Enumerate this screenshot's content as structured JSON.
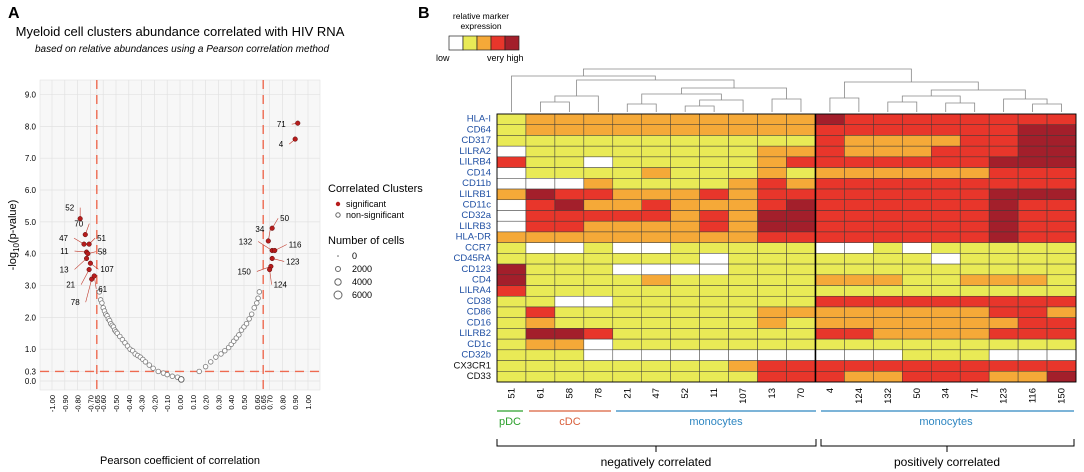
{
  "panel_a": {
    "letter": "A",
    "title": "Myeloid cell clusters abundance correlated with HIV RNA",
    "subtitle": "based on relative abundances using a Pearson correlation method",
    "xlabel": "Pearson coefficient of correlation",
    "ylabel": "-log10(p-value)",
    "ylabel_base": "-log",
    "ylabel_sub": "10",
    "ylabel_rest": "(p-value)",
    "legend": {
      "color_title": "Correlated Clusters",
      "significant": "significant",
      "non_significant": "non-significant",
      "size_title": "Number of cells",
      "sizes": [
        "0",
        "2000",
        "4000",
        "6000"
      ]
    },
    "colors": {
      "significant": "#b71c1c",
      "threshold": "#ee6a50",
      "nonsig": "#9a9a9a"
    }
  },
  "panel_b": {
    "letter": "B",
    "scale_title_1": "relative marker",
    "scale_title_2": "expression",
    "scale_low": "low",
    "scale_high": "very high",
    "scale_colors": [
      "#ffffff",
      "#e9ea56",
      "#f5a938",
      "#e8362b",
      "#a31f2b"
    ],
    "group_labels": [
      "pDC",
      "cDC",
      "monocytes",
      "monocytes"
    ],
    "group_colors": [
      "#2ca02c",
      "#d9603c",
      "#2e86c1",
      "#2e86c1"
    ],
    "bottom_labels": [
      "negatively correlated",
      "positively correlated"
    ]
  },
  "chart_data": [
    {
      "type": "scatter",
      "title": "Myeloid cell clusters abundance correlated with HIV RNA",
      "xlabel": "Pearson coefficient of correlation",
      "ylabel": "-log10(p-value)",
      "xlim": [
        -1.0,
        1.0
      ],
      "ylim": [
        0,
        9.3
      ],
      "xticks": [
        "-1.00",
        "-0.90",
        "-0.80",
        "-0.70",
        "-0.65",
        "-0.60",
        "-0.50",
        "-0.40",
        "-0.30",
        "-0.20",
        "-0.10",
        "0.00",
        "0.10",
        "0.20",
        "0.30",
        "0.40",
        "0.50",
        "0.60",
        "0.65",
        "0.70",
        "0.80",
        "0.90",
        "1.00"
      ],
      "yticks": [
        "0.0",
        "0.3",
        "1.0",
        "2.0",
        "3.0",
        "4.0",
        "5.0",
        "6.0",
        "7.0",
        "8.0",
        "9.0"
      ],
      "thresholds": {
        "x": [
          -0.65,
          0.65
        ],
        "y": 0.3
      },
      "significant": [
        {
          "label": "71",
          "x": 0.92,
          "y": 8.1
        },
        {
          "label": "4",
          "x": 0.9,
          "y": 7.6
        },
        {
          "label": "52",
          "x": -0.78,
          "y": 5.1
        },
        {
          "label": "70",
          "x": -0.74,
          "y": 4.6
        },
        {
          "label": "47",
          "x": -0.75,
          "y": 4.3
        },
        {
          "label": "51",
          "x": -0.71,
          "y": 4.3
        },
        {
          "label": "11",
          "x": -0.73,
          "y": 4.05
        },
        {
          "label": "58",
          "x": -0.72,
          "y": 4.0
        },
        {
          "label": "13",
          "x": -0.73,
          "y": 3.85
        },
        {
          "label": "107",
          "x": -0.7,
          "y": 3.7
        },
        {
          "label": "21",
          "x": -0.71,
          "y": 3.5
        },
        {
          "label": "78",
          "x": -0.69,
          "y": 3.2
        },
        {
          "label": "61",
          "x": -0.67,
          "y": 3.3
        },
        {
          "label": "50",
          "x": 0.72,
          "y": 4.8
        },
        {
          "label": "34",
          "x": 0.69,
          "y": 4.4
        },
        {
          "label": "132",
          "x": 0.72,
          "y": 4.1
        },
        {
          "label": "116",
          "x": 0.74,
          "y": 4.1
        },
        {
          "label": "123",
          "x": 0.72,
          "y": 3.85
        },
        {
          "label": "150",
          "x": 0.71,
          "y": 3.6
        },
        {
          "label": "124",
          "x": 0.7,
          "y": 3.5
        }
      ],
      "non_significant": [
        [
          -0.63,
          2.8
        ],
        [
          -0.62,
          2.55
        ],
        [
          -0.61,
          2.45
        ],
        [
          -0.6,
          2.3
        ],
        [
          -0.59,
          2.2
        ],
        [
          -0.58,
          2.1
        ],
        [
          -0.57,
          2.05
        ],
        [
          -0.56,
          1.95
        ],
        [
          -0.55,
          1.9
        ],
        [
          -0.54,
          1.8
        ],
        [
          -0.53,
          1.75
        ],
        [
          -0.52,
          1.7
        ],
        [
          -0.51,
          1.6
        ],
        [
          -0.5,
          1.55
        ],
        [
          -0.49,
          1.5
        ],
        [
          -0.47,
          1.4
        ],
        [
          -0.45,
          1.3
        ],
        [
          -0.43,
          1.2
        ],
        [
          -0.41,
          1.1
        ],
        [
          -0.39,
          1.0
        ],
        [
          -0.37,
          0.95
        ],
        [
          -0.35,
          0.85
        ],
        [
          -0.33,
          0.8
        ],
        [
          -0.31,
          0.75
        ],
        [
          -0.29,
          0.68
        ],
        [
          -0.27,
          0.6
        ],
        [
          -0.24,
          0.5
        ],
        [
          -0.21,
          0.4
        ],
        [
          -0.17,
          0.3
        ],
        [
          -0.13,
          0.25
        ],
        [
          -0.1,
          0.2
        ],
        [
          -0.06,
          0.15
        ],
        [
          -0.02,
          0.12
        ],
        [
          0.15,
          0.3
        ],
        [
          0.2,
          0.45
        ],
        [
          0.24,
          0.6
        ],
        [
          0.28,
          0.75
        ],
        [
          0.32,
          0.85
        ],
        [
          0.35,
          0.95
        ],
        [
          0.38,
          1.05
        ],
        [
          0.4,
          1.15
        ],
        [
          0.42,
          1.25
        ],
        [
          0.44,
          1.35
        ],
        [
          0.46,
          1.45
        ],
        [
          0.48,
          1.6
        ],
        [
          0.5,
          1.7
        ],
        [
          0.52,
          1.8
        ],
        [
          0.54,
          1.95
        ],
        [
          0.56,
          2.1
        ],
        [
          0.58,
          2.3
        ],
        [
          0.6,
          2.45
        ],
        [
          0.61,
          2.6
        ],
        [
          0.62,
          2.8
        ]
      ]
    },
    {
      "type": "heatmap",
      "xlabel": "cluster",
      "ylabel": "marker",
      "rows": [
        "HLA-I",
        "CD64",
        "CD317",
        "LILRA2",
        "LILRB4",
        "CD14",
        "CD11b",
        "LILRB1",
        "CD11c",
        "CD32a",
        "LILRB3",
        "HLA-DR",
        "CCR7",
        "CD45RA",
        "CD123",
        "CD4",
        "LILRA4",
        "CD38",
        "CD86",
        "CD16",
        "LILRB2",
        "CD1c",
        "CD32b",
        "CX3CR1",
        "CD33"
      ],
      "blue_rows": 23,
      "columns": [
        "51",
        "61",
        "58",
        "78",
        "21",
        "47",
        "52",
        "11",
        "107",
        "13",
        "70",
        "4",
        "124",
        "132",
        "50",
        "34",
        "71",
        "123",
        "116",
        "150"
      ],
      "divider_after_column": 11,
      "scale": "0=white,1=yellow,2=orange,3=red,4=dark red",
      "values": [
        [
          1,
          2,
          2,
          2,
          2,
          2,
          2,
          2,
          2,
          2,
          2,
          4,
          3,
          3,
          3,
          3,
          3,
          3,
          3,
          3
        ],
        [
          1,
          2,
          2,
          2,
          2,
          2,
          2,
          2,
          2,
          2,
          2,
          3,
          3,
          3,
          3,
          3,
          3,
          3,
          4,
          4
        ],
        [
          1,
          1,
          1,
          1,
          1,
          1,
          1,
          1,
          1,
          1,
          1,
          3,
          2,
          2,
          2,
          2,
          3,
          3,
          4,
          4
        ],
        [
          0,
          1,
          1,
          1,
          1,
          1,
          1,
          1,
          1,
          2,
          2,
          3,
          2,
          2,
          2,
          3,
          3,
          3,
          4,
          4
        ],
        [
          3,
          1,
          1,
          0,
          1,
          1,
          1,
          1,
          1,
          2,
          3,
          3,
          3,
          3,
          3,
          3,
          3,
          4,
          4,
          4
        ],
        [
          0,
          1,
          1,
          1,
          1,
          2,
          1,
          1,
          1,
          2,
          1,
          2,
          2,
          2,
          2,
          2,
          2,
          3,
          3,
          3
        ],
        [
          0,
          0,
          0,
          2,
          1,
          1,
          1,
          1,
          2,
          3,
          2,
          3,
          3,
          3,
          3,
          3,
          3,
          3,
          3,
          3
        ],
        [
          2,
          4,
          3,
          3,
          2,
          2,
          2,
          3,
          2,
          3,
          3,
          3,
          3,
          3,
          3,
          3,
          3,
          4,
          4,
          4
        ],
        [
          0,
          3,
          4,
          2,
          2,
          3,
          2,
          2,
          2,
          3,
          4,
          3,
          3,
          3,
          3,
          3,
          3,
          4,
          3,
          3
        ],
        [
          0,
          3,
          3,
          3,
          3,
          3,
          2,
          3,
          2,
          4,
          4,
          3,
          3,
          3,
          3,
          3,
          3,
          4,
          3,
          3
        ],
        [
          0,
          3,
          3,
          2,
          2,
          2,
          2,
          3,
          2,
          4,
          4,
          3,
          3,
          3,
          3,
          3,
          3,
          4,
          3,
          3
        ],
        [
          2,
          2,
          2,
          2,
          2,
          2,
          2,
          2,
          2,
          3,
          3,
          3,
          3,
          3,
          3,
          3,
          3,
          4,
          3,
          3
        ],
        [
          1,
          0,
          0,
          1,
          0,
          0,
          1,
          1,
          1,
          1,
          1,
          0,
          0,
          1,
          0,
          1,
          1,
          1,
          1,
          1
        ],
        [
          1,
          1,
          1,
          1,
          1,
          1,
          1,
          0,
          1,
          1,
          1,
          1,
          1,
          1,
          1,
          0,
          1,
          1,
          1,
          1
        ],
        [
          4,
          1,
          1,
          1,
          0,
          0,
          0,
          0,
          1,
          1,
          1,
          1,
          1,
          1,
          1,
          1,
          1,
          1,
          1,
          1
        ],
        [
          4,
          1,
          1,
          1,
          1,
          2,
          1,
          1,
          1,
          1,
          1,
          2,
          2,
          2,
          1,
          1,
          2,
          2,
          2,
          1
        ],
        [
          3,
          1,
          1,
          1,
          1,
          1,
          1,
          1,
          1,
          1,
          1,
          1,
          1,
          1,
          1,
          1,
          1,
          1,
          1,
          1
        ],
        [
          1,
          1,
          0,
          0,
          1,
          1,
          1,
          1,
          1,
          1,
          1,
          3,
          3,
          3,
          3,
          3,
          3,
          3,
          3,
          3
        ],
        [
          1,
          3,
          1,
          1,
          1,
          1,
          1,
          1,
          1,
          2,
          2,
          2,
          2,
          2,
          2,
          2,
          2,
          3,
          3,
          2
        ],
        [
          1,
          2,
          1,
          1,
          1,
          1,
          1,
          1,
          1,
          2,
          1,
          2,
          2,
          2,
          2,
          2,
          2,
          2,
          3,
          3
        ],
        [
          1,
          4,
          4,
          3,
          1,
          1,
          1,
          1,
          1,
          1,
          1,
          3,
          3,
          2,
          2,
          2,
          2,
          3,
          3,
          3
        ],
        [
          1,
          2,
          2,
          0,
          1,
          1,
          1,
          1,
          1,
          1,
          1,
          1,
          1,
          1,
          1,
          1,
          1,
          1,
          1,
          1
        ],
        [
          1,
          1,
          1,
          0,
          0,
          0,
          0,
          0,
          0,
          0,
          0,
          0,
          0,
          0,
          1,
          1,
          1,
          0,
          0,
          0
        ],
        [
          1,
          1,
          1,
          1,
          1,
          1,
          1,
          1,
          2,
          3,
          3,
          3,
          3,
          3,
          3,
          3,
          3,
          3,
          3,
          3
        ],
        [
          1,
          1,
          1,
          1,
          1,
          1,
          1,
          1,
          1,
          3,
          3,
          3,
          2,
          2,
          3,
          3,
          3,
          2,
          2,
          4
        ]
      ]
    }
  ]
}
